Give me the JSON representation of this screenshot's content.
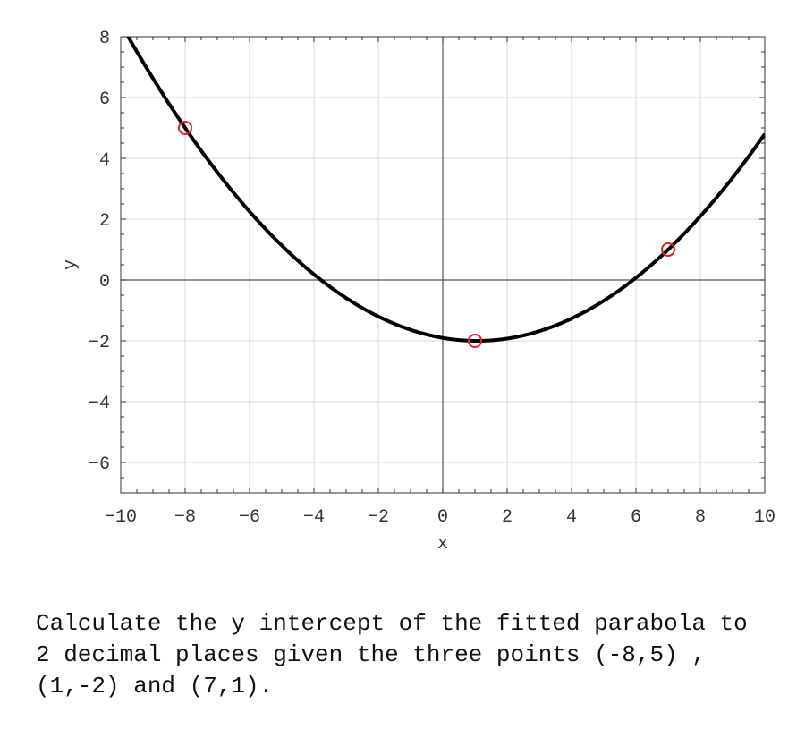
{
  "chart_data": {
    "type": "line",
    "xlabel": "x",
    "ylabel": "y",
    "xlim": [
      -10,
      10
    ],
    "ylim": [
      -7,
      8
    ],
    "xticks": [
      -10,
      -8,
      -6,
      -4,
      -2,
      0,
      2,
      4,
      6,
      8,
      10
    ],
    "yticks": [
      -6,
      -4,
      -2,
      0,
      2,
      4,
      6,
      8
    ],
    "grid": true,
    "curve": {
      "kind": "fitted-parabola",
      "color": "#000000"
    },
    "points": [
      {
        "x": -8,
        "y": 5
      },
      {
        "x": 1,
        "y": -2
      },
      {
        "x": 7,
        "y": 1
      }
    ],
    "point_color": "#e02020"
  },
  "question": "Calculate the y intercept of the fitted parabola to 2 decimal places given the three points (-8,5) , (1,-2) and (7,1)."
}
